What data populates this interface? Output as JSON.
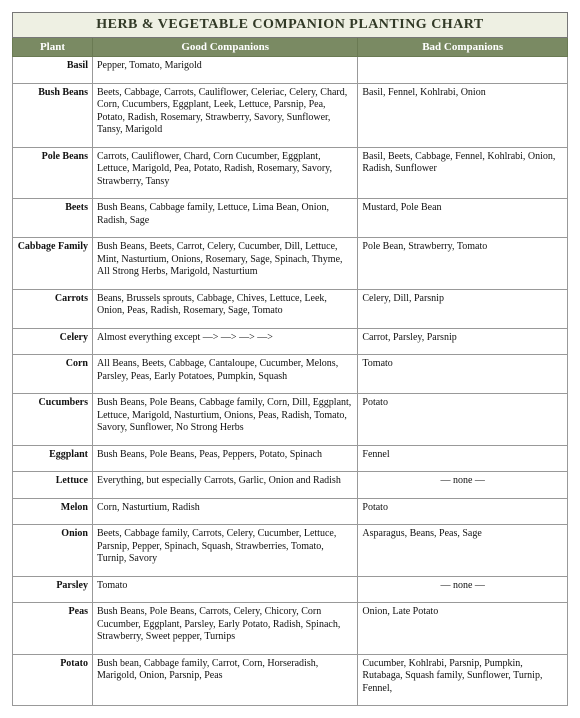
{
  "title": "HERB & VEGETABLE COMPANION PLANTING CHART",
  "columns": [
    "Plant",
    "Good Companions",
    "Bad Companions"
  ],
  "rows": [
    {
      "plant": "Basil",
      "good": "Pepper, Tomato, Marigold",
      "bad": ""
    },
    {
      "plant": "Bush Beans",
      "good": "Beets, Cabbage, Carrots, Cauliflower, Celeriac, Celery, Chard, Corn, Cucumbers, Eggplant, Leek, Lettuce, Parsnip, Pea, Potato, Radish, Rosemary, Strawberry, Savory, Sunflower, Tansy, Marigold",
      "bad": "Basil, Fennel, Kohlrabi, Onion"
    },
    {
      "plant": "Pole Beans",
      "good": "Carrots, Cauliflower,  Chard, Corn Cucumber, Eggplant, Lettuce, Marigold, Pea, Potato, Radish, Rosemary, Savory, Strawberry, Tansy",
      "bad": "Basil, Beets, Cabbage, Fennel, Kohlrabi, Onion, Radish, Sunflower"
    },
    {
      "plant": "Beets",
      "good": "Bush Beans, Cabbage family, Lettuce, Lima Bean, Onion, Radish, Sage",
      "bad": "Mustard, Pole Bean"
    },
    {
      "plant": "Cabbage Family",
      "good": "Bush Beans, Beets, Carrot, Celery, Cucumber, Dill, Lettuce, Mint, Nasturtium, Onions, Rosemary, Sage, Spinach, Thyme, All Strong Herbs, Marigold, Nasturtium",
      "bad": "Pole Bean, Strawberry, Tomato"
    },
    {
      "plant": "Carrots",
      "good": "Beans, Brussels sprouts, Cabbage, Chives, Lettuce, Leek, Onion, Peas, Radish, Rosemary, Sage, Tomato",
      "bad": "Celery, Dill, Parsnip"
    },
    {
      "plant": "Celery",
      "good": "Almost everything except   —>  —>  —>  —>",
      "bad": "Carrot, Parsley, Parsnip"
    },
    {
      "plant": "Corn",
      "good": "All Beans, Beets, Cabbage, Cantaloupe, Cucumber, Melons, Parsley, Peas, Early Potatoes, Pumpkin, Squash",
      "bad": "Tomato"
    },
    {
      "plant": "Cucumbers",
      "good": "Bush Beans, Pole Beans, Cabbage family, Corn, Dill, Eggplant, Lettuce, Marigold, Nasturtium, Onions, Peas, Radish, Tomato, Savory, Sunflower, No Strong Herbs",
      "bad": "Potato"
    },
    {
      "plant": "Eggplant",
      "good": "Bush Beans, Pole Beans, Peas, Peppers, Potato, Spinach",
      "bad": "Fennel"
    },
    {
      "plant": "Lettuce",
      "good": "Everything, but especially Carrots, Garlic, Onion and Radish",
      "bad": "— none —",
      "badClass": "none"
    },
    {
      "plant": "Melon",
      "good": "Corn, Nasturtium, Radish",
      "bad": "Potato"
    },
    {
      "plant": "Onion",
      "good": "Beets, Cabbage family, Carrots, Celery, Cucumber, Lettuce, Parsnip, Pepper, Spinach, Squash, Strawberries, Tomato, Turnip, Savory",
      "bad": "Asparagus, Beans, Peas, Sage"
    },
    {
      "plant": "Parsley",
      "good": "Tomato",
      "bad": "— none —",
      "badClass": "none"
    },
    {
      "plant": "Peas",
      "good": "Bush Beans, Pole Beans, Carrots, Celery, Chicory, Corn Cucumber, Eggplant, Parsley, Early Potato, Radish, Spinach, Strawberry, Sweet pepper, Turnips",
      "bad": "Onion, Late Potato"
    },
    {
      "plant": "Potato",
      "good": "Bush bean, Cabbage family, Carrot, Corn, Horseradish, Marigold, Onion, Parsnip, Peas",
      "bad": "Cucumber, Kohlrabi, Parsnip, Pumpkin, Rutabaga, Squash family, Sunflower, Turnip, Fennel,"
    }
  ]
}
